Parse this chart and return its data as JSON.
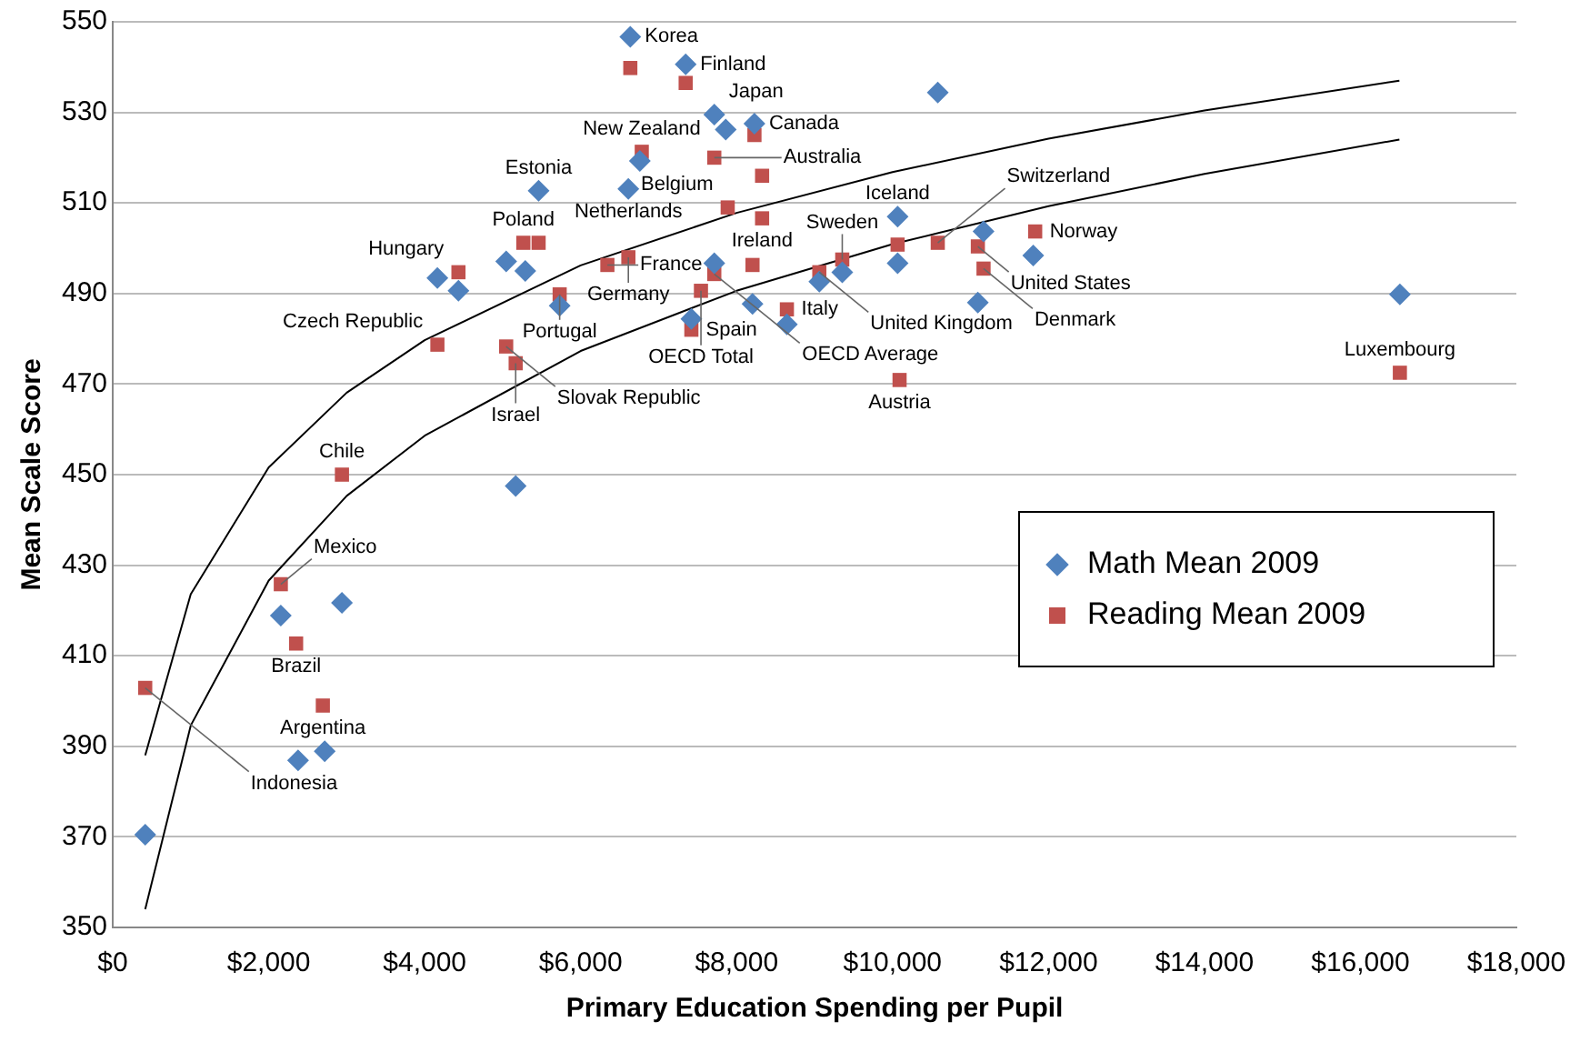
{
  "chart_data": {
    "type": "scatter",
    "xlabel": "Primary Education Spending per Pupil",
    "ylabel": "Mean Scale Score",
    "xlim": [
      0,
      18000
    ],
    "xticks": [
      {
        "value": 0,
        "label": "$0"
      },
      {
        "value": 2000,
        "label": "$2,000"
      },
      {
        "value": 4000,
        "label": "$4,000"
      },
      {
        "value": 6000,
        "label": "$6,000"
      },
      {
        "value": 8000,
        "label": "$8,000"
      },
      {
        "value": 10000,
        "label": "$10,000"
      },
      {
        "value": 12000,
        "label": "$12,000"
      },
      {
        "value": 14000,
        "label": "$14,000"
      },
      {
        "value": 16000,
        "label": "$16,000"
      },
      {
        "value": 18000,
        "label": "$18,000"
      }
    ],
    "ylim": [
      350,
      550
    ],
    "yticks": [
      350,
      370,
      390,
      410,
      430,
      450,
      470,
      490,
      510,
      530,
      550
    ],
    "grid": "y",
    "legend": "right",
    "series": [
      {
        "name": "Math Mean 2009",
        "color": "#4f81bd",
        "marker": "diamond",
        "x": [
          416,
          2155,
          2939,
          2376,
          2718,
          4163,
          4433,
          5045,
          5290,
          5461,
          6612,
          5167,
          5731,
          6637,
          7347,
          8229,
          7861,
          7714,
          6759,
          10580,
          7714,
          7420,
          8204,
          8645,
          9061,
          9355,
          10065,
          10065,
          11094,
          11167,
          11804,
          16506
        ],
        "values": [
          370.5,
          418.9,
          421.7,
          386.9,
          388.9,
          493.4,
          490.6,
          497.1,
          495,
          512.7,
          513.1,
          447.5,
          487.3,
          546.7,
          540.6,
          527.5,
          526.2,
          529.5,
          519.3,
          534.4,
          496.7,
          484.4,
          487.7,
          483.2,
          492.6,
          494.7,
          496.7,
          507,
          488,
          503.7,
          498.4,
          489.8
        ]
      },
      {
        "name": "Reading Mean 2009",
        "color": "#c0504d",
        "marker": "square",
        "x": [
          416,
          2155,
          2351,
          2694,
          2939,
          4163,
          4433,
          5045,
          5167,
          5265,
          5461,
          5731,
          6343,
          6612,
          7543,
          7714,
          8204,
          7420,
          8645,
          7886,
          8327,
          9061,
          9355,
          10065,
          10580,
          11094,
          11167,
          11829,
          10090,
          16506,
          6637,
          7347,
          6784,
          7714,
          8229,
          8327
        ],
        "values": [
          402.9,
          425.8,
          412.7,
          399,
          450,
          478.7,
          494.7,
          478.3,
          474.6,
          501.2,
          501.2,
          489.8,
          496.3,
          498,
          490.6,
          494.3,
          496.3,
          482,
          486.5,
          509,
          506.6,
          494.7,
          497.5,
          500.8,
          501.2,
          500.4,
          495.5,
          503.7,
          470.9,
          472.5,
          539.8,
          536.5,
          521.3,
          520,
          525,
          516
        ]
      },
      {
        "type": "line",
        "color": "#000000",
        "marker": "none",
        "x": [
          416,
          1000,
          2000,
          3000,
          4000,
          6000,
          8000,
          10000,
          12000,
          14000,
          16500
        ],
        "values": [
          388,
          423.6,
          451.6,
          468.1,
          479.7,
          496.2,
          507.8,
          516.8,
          524.2,
          530.4,
          537
        ]
      },
      {
        "type": "line",
        "color": "#000000",
        "marker": "none",
        "x": [
          416,
          1000,
          2000,
          3000,
          4000,
          6000,
          8000,
          10000,
          12000,
          14000,
          16500
        ],
        "values": [
          354,
          394.6,
          426.6,
          445.3,
          458.6,
          477.3,
          490.6,
          500.9,
          509.3,
          516.4,
          524
        ]
      }
    ],
    "annotations": [
      {
        "text": "Korea",
        "x": 6637,
        "y": 546.7
      },
      {
        "text": "Finland",
        "x": 7347,
        "y": 540.6
      },
      {
        "text": "Canada",
        "x": 8229,
        "y": 527.5
      },
      {
        "text": "New Zealand",
        "x": 6784,
        "y": 521.3
      },
      {
        "text": "Japan",
        "x": 7714,
        "y": 529.5
      },
      {
        "text": "Australia",
        "x": 7714,
        "y": 520
      },
      {
        "text": "Netherlands",
        "x": 6612,
        "y": 513.1
      },
      {
        "text": "Belgium",
        "x": 7886,
        "y": 509
      },
      {
        "text": "Poland",
        "x": 5265,
        "y": 501.2
      },
      {
        "text": "Estonia",
        "x": 5461,
        "y": 512.7
      },
      {
        "text": "Hungary",
        "x": 4433,
        "y": 494.7
      },
      {
        "text": "Germany",
        "x": 6612,
        "y": 498
      },
      {
        "text": "France",
        "x": 6343,
        "y": 496.3
      },
      {
        "text": "OECD Total",
        "x": 7543,
        "y": 490.6
      },
      {
        "text": "OECD Average",
        "x": 7714,
        "y": 494.3
      },
      {
        "text": "Portugal",
        "x": 5731,
        "y": 489.8
      },
      {
        "text": "Ireland",
        "x": 8327,
        "y": 506.6
      },
      {
        "text": "Sweden",
        "x": 9355,
        "y": 497.5
      },
      {
        "text": "United Kingdom",
        "x": 9061,
        "y": 494.7
      },
      {
        "text": "Iceland",
        "x": 10065,
        "y": 507
      },
      {
        "text": "Switzerland",
        "x": 10580,
        "y": 501.2
      },
      {
        "text": "United States",
        "x": 11094,
        "y": 500.4
      },
      {
        "text": "Norway",
        "x": 11829,
        "y": 503.7
      },
      {
        "text": "Denmark",
        "x": 11167,
        "y": 495.5
      },
      {
        "text": "Luxembourg",
        "x": 16506,
        "y": 472.5
      },
      {
        "text": "Austria",
        "x": 10090,
        "y": 470.9
      },
      {
        "text": "Italy",
        "x": 8645,
        "y": 486.5
      },
      {
        "text": "Spain",
        "x": 7420,
        "y": 482
      },
      {
        "text": "Czech Republic",
        "x": 4163,
        "y": 478.7
      },
      {
        "text": "Slovak Republic",
        "x": 5045,
        "y": 478.3
      },
      {
        "text": "Israel",
        "x": 5167,
        "y": 474.6
      },
      {
        "text": "Chile",
        "x": 2939,
        "y": 450
      },
      {
        "text": "Mexico",
        "x": 2155,
        "y": 425.8
      },
      {
        "text": "Brazil",
        "x": 2351,
        "y": 412.7
      },
      {
        "text": "Argentina",
        "x": 2694,
        "y": 399
      },
      {
        "text": "Indonesia",
        "x": 416,
        "y": 402.9
      }
    ]
  }
}
